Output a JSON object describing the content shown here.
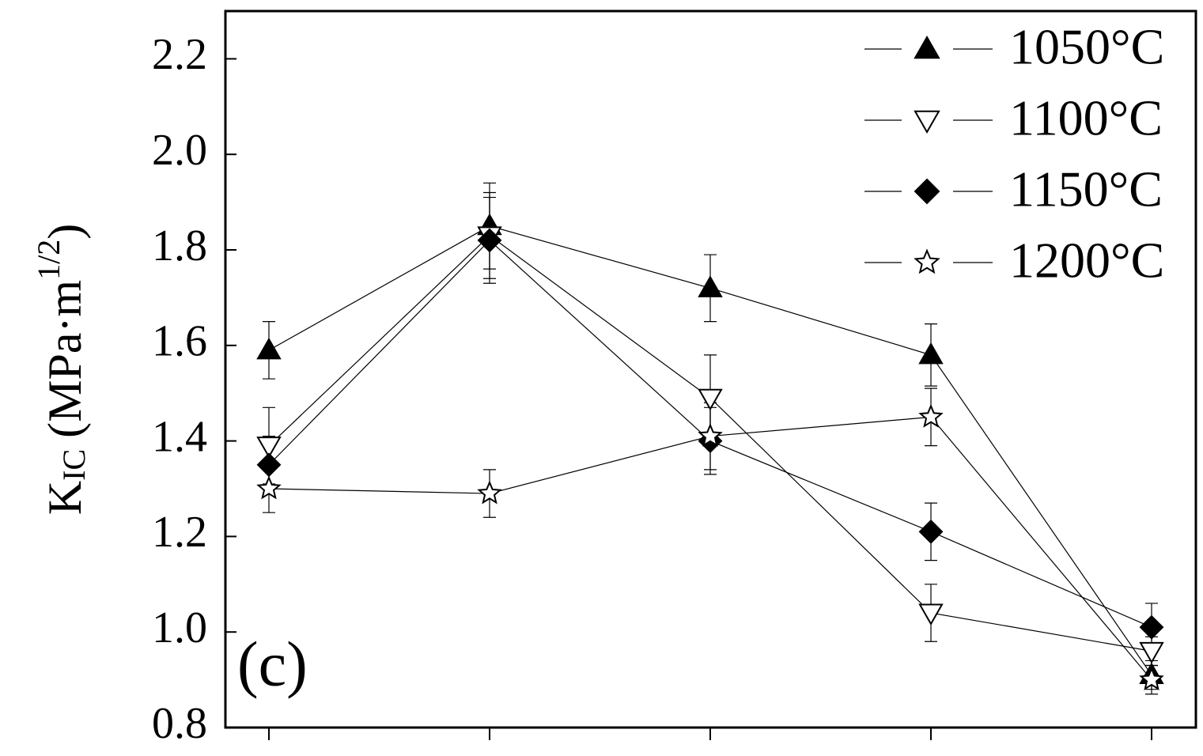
{
  "chart_data": {
    "type": "line",
    "ylabel": {
      "main": "K",
      "sub": "IC",
      "unit": "(MPa·m",
      "sup": "1/2",
      "close": ")"
    },
    "annotation": "(c)",
    "categories": [
      null,
      null,
      null,
      null,
      null
    ],
    "ylim": [
      0.8,
      2.3
    ],
    "yticks": [
      0.8,
      {
        "value": 1,
        "label": "1.0"
      },
      1.2,
      1.4,
      1.6,
      1.8,
      {
        "value": 2,
        "label": "2.0"
      },
      2.2
    ],
    "legend": "upper right",
    "series": [
      {
        "name": "1050°C",
        "marker": "triangle-up",
        "filled": true,
        "color": "#000000",
        "values": [
          1.59,
          1.85,
          1.72,
          1.58,
          0.91
        ],
        "errors": [
          0.06,
          0.09,
          0.07,
          0.065,
          0.03
        ]
      },
      {
        "name": "1100°C",
        "marker": "triangle-down",
        "filled": false,
        "color": "#000000",
        "values": [
          1.39,
          1.83,
          1.49,
          1.04,
          0.96
        ],
        "errors": [
          0.08,
          0.09,
          0.09,
          0.06,
          0.03
        ]
      },
      {
        "name": "1150°C",
        "marker": "diamond",
        "filled": true,
        "color": "#000000",
        "values": [
          1.35,
          1.82,
          1.4,
          1.21,
          1.01
        ],
        "errors": [
          0.06,
          0.09,
          0.07,
          0.06,
          0.05
        ]
      },
      {
        "name": "1200°C",
        "marker": "star",
        "filled": false,
        "color": "#000000",
        "values": [
          1.3,
          1.29,
          1.41,
          1.45,
          0.9
        ],
        "errors": [
          0.05,
          0.05,
          0.07,
          0.06,
          0.03
        ]
      }
    ]
  }
}
